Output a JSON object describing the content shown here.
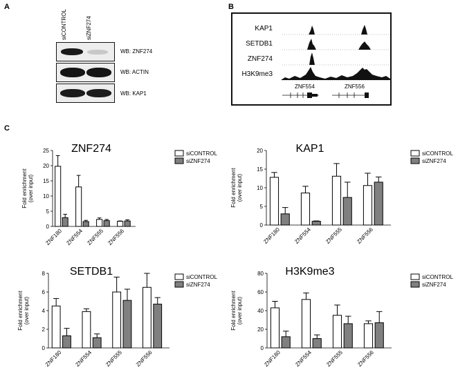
{
  "panel_a": {
    "letter": "A",
    "lanes": [
      "siCONTROL",
      "siZNF274"
    ],
    "blots": [
      {
        "label": "WB: ZNF274"
      },
      {
        "label": "WB: ACTIN"
      },
      {
        "label": "WB: KAP1"
      }
    ]
  },
  "panel_b": {
    "letter": "B",
    "tracks": [
      "KAP1",
      "SETDB1",
      "ZNF274",
      "H3K9me3"
    ],
    "genes": [
      "ZNF554",
      "ZNF556"
    ]
  },
  "panel_c": {
    "letter": "C"
  },
  "chart_data": [
    {
      "type": "bar",
      "title": "ZNF274",
      "ylabel": "Fold enrichment\n(over input)",
      "categories": [
        "ZNF180",
        "ZNF554",
        "ZNF555",
        "ZNF556"
      ],
      "ylim": [
        0,
        25
      ],
      "yticks": [
        0,
        5,
        10,
        15,
        20,
        25
      ],
      "series": [
        {
          "name": "siCONTROL",
          "color": "#ffffff",
          "values": [
            19.8,
            13.0,
            2.3,
            1.7
          ],
          "errors": [
            3.5,
            3.8,
            0.5,
            0.1
          ]
        },
        {
          "name": "siZNF274",
          "color": "#808080",
          "values": [
            2.9,
            1.6,
            1.9,
            1.8
          ],
          "errors": [
            1.1,
            0.4,
            0.4,
            0.4
          ]
        }
      ],
      "legend": "top-right"
    },
    {
      "type": "bar",
      "title": "KAP1",
      "ylabel": "Fold enrichment\n(over input)",
      "categories": [
        "ZNF180",
        "ZNF554",
        "ZNF555",
        "ZNF556"
      ],
      "ylim": [
        0,
        20
      ],
      "yticks": [
        0,
        5,
        10,
        15,
        20
      ],
      "series": [
        {
          "name": "siCONTROL",
          "color": "#ffffff",
          "values": [
            12.8,
            8.6,
            13.1,
            10.6
          ],
          "errors": [
            1.3,
            1.8,
            3.4,
            3.3
          ]
        },
        {
          "name": "siZNF274",
          "color": "#808080",
          "values": [
            3.0,
            1.0,
            7.4,
            11.5
          ],
          "errors": [
            1.7,
            0.1,
            4.1,
            1.4
          ]
        }
      ],
      "legend": "top-right"
    },
    {
      "type": "bar",
      "title": "SETDB1",
      "ylabel": "Fold enrichment\n(over input)",
      "categories": [
        "ZNF180",
        "ZNF554",
        "ZNF555",
        "ZNF556"
      ],
      "ylim": [
        0,
        8
      ],
      "yticks": [
        0,
        2,
        4,
        6,
        8
      ],
      "series": [
        {
          "name": "siCONTROL",
          "color": "#ffffff",
          "values": [
            4.5,
            3.9,
            6.0,
            6.5
          ],
          "errors": [
            0.8,
            0.3,
            1.6,
            1.5
          ]
        },
        {
          "name": "siZNF274",
          "color": "#808080",
          "values": [
            1.3,
            1.1,
            5.1,
            4.7
          ],
          "errors": [
            0.8,
            0.4,
            1.2,
            0.7
          ]
        }
      ],
      "legend": "top-right"
    },
    {
      "type": "bar",
      "title": "H3K9me3",
      "ylabel": "Fold enrichment\n(over input)",
      "categories": [
        "ZNF180",
        "ZNF554",
        "ZNF555",
        "ZNF556"
      ],
      "ylim": [
        0,
        80
      ],
      "yticks": [
        0,
        20,
        40,
        60,
        80
      ],
      "series": [
        {
          "name": "siCONTROL",
          "color": "#ffffff",
          "values": [
            43,
            52,
            35,
            26
          ],
          "errors": [
            7,
            7,
            11,
            3
          ]
        },
        {
          "name": "siZNF274",
          "color": "#808080",
          "values": [
            12,
            10,
            26,
            27
          ],
          "errors": [
            6,
            4,
            8,
            12
          ]
        }
      ],
      "legend": "top-right"
    }
  ]
}
